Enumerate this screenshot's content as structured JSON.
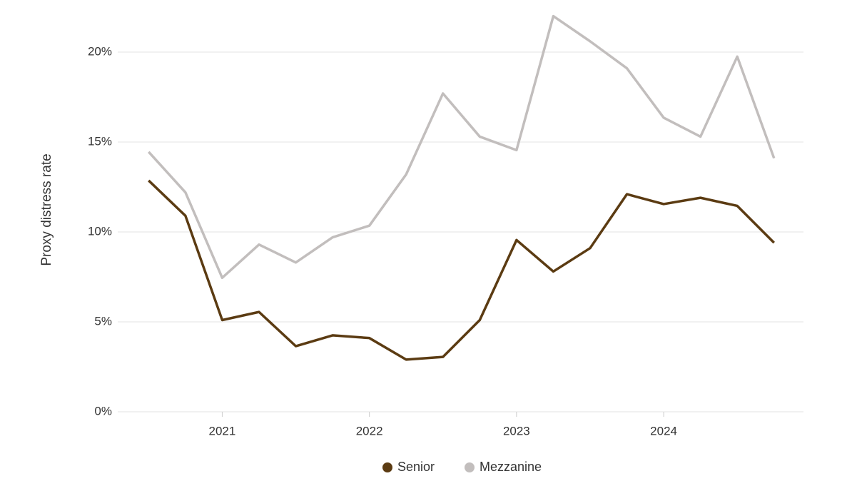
{
  "chart_data": {
    "type": "line",
    "y_label": "Proxy distress rate",
    "x": [
      2020.5,
      2020.75,
      2021,
      2021.25,
      2021.5,
      2021.75,
      2022,
      2022.25,
      2022.5,
      2022.75,
      2023,
      2023.25,
      2023.5,
      2023.75,
      2024,
      2024.25,
      2024.5,
      2024.75
    ],
    "series": [
      {
        "name": "Senior",
        "color": "#5b3b12",
        "values": [
          12.86,
          10.9,
          5.1,
          5.55,
          3.65,
          4.25,
          4.1,
          2.9,
          3.05,
          5.1,
          9.55,
          7.8,
          9.1,
          12.1,
          11.55,
          11.9,
          11.45,
          9.4
        ]
      },
      {
        "name": "Mezzanine",
        "color": "#c2bebd",
        "values": [
          14.45,
          12.2,
          7.45,
          9.3,
          8.3,
          9.7,
          10.35,
          13.2,
          17.7,
          15.3,
          14.55,
          22.0,
          20.6,
          19.1,
          16.35,
          15.3,
          19.75,
          14.1
        ]
      }
    ],
    "xlim": [
      2020.29,
      2024.95
    ],
    "xticks": [
      2021,
      2022,
      2023,
      2024
    ],
    "ylim": [
      0,
      22.5
    ],
    "yticks": [
      {
        "value": 0,
        "label": "0%"
      },
      {
        "value": 5,
        "label": "5%"
      },
      {
        "value": 10,
        "label": "10%"
      },
      {
        "value": 15,
        "label": "15%"
      },
      {
        "value": 20,
        "label": "20%"
      }
    ],
    "grid": true
  }
}
